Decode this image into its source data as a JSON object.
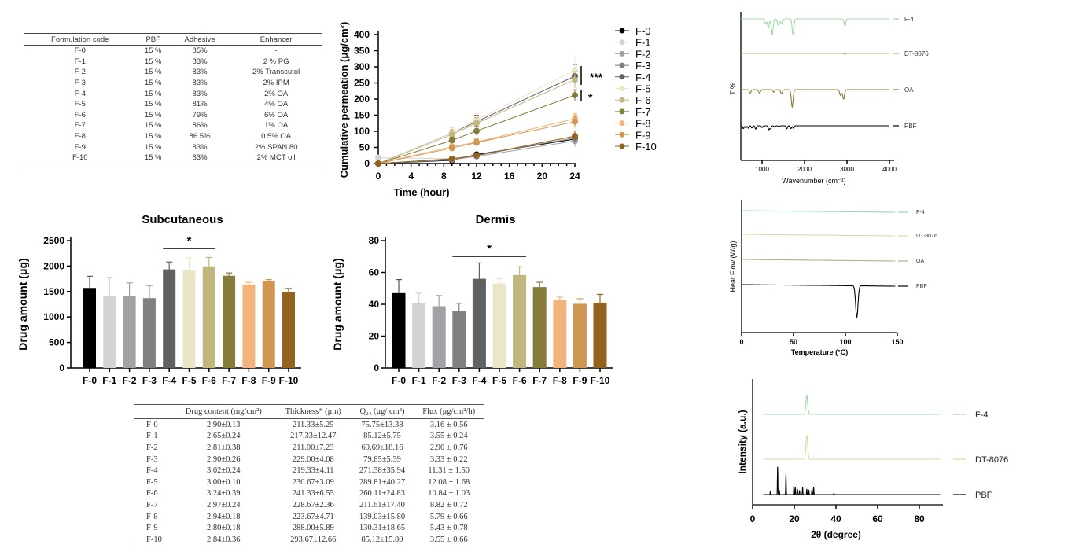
{
  "composition_table": {
    "headers": [
      "Formulation code",
      "PBF",
      "Adhesive",
      "Enhancer"
    ],
    "rows": [
      [
        "F-0",
        "15 %",
        "85%",
        "-"
      ],
      [
        "F-1",
        "15 %",
        "83%",
        "2 % PG"
      ],
      [
        "F-2",
        "15 %",
        "83%",
        "2% Transcutol"
      ],
      [
        "F-3",
        "15 %",
        "83%",
        "2% IPM"
      ],
      [
        "F-4",
        "15 %",
        "83%",
        "2% OA"
      ],
      [
        "F-5",
        "15 %",
        "81%",
        "4% OA"
      ],
      [
        "F-6",
        "15 %",
        "79%",
        "6% OA"
      ],
      [
        "F-7",
        "15 %",
        "86%",
        "1% OA"
      ],
      [
        "F-8",
        "15 %",
        "86.5%",
        "0.5% OA"
      ],
      [
        "F-9",
        "15 %",
        "83%",
        "2% SPAN 80"
      ],
      [
        "F-10",
        "15 %",
        "83%",
        "2% MCT oil"
      ]
    ]
  },
  "properties_table": {
    "headers": [
      "",
      "Drug content (mg/cm²)",
      "Thickness* (μm)",
      "Q₂₄ (μg/ cm²)",
      "Flux (μg/cm²/h)"
    ],
    "rows": [
      [
        "F-0",
        "2.90±0.13",
        "211.33±5.25",
        "75.75±13.38",
        "3.16 ± 0.56"
      ],
      [
        "F-1",
        "2.65±0.24",
        "217.33±12.47",
        "85.12±5.75",
        "3.55 ± 0.24"
      ],
      [
        "F-2",
        "2.81±0.38",
        "211.00±7.23",
        "69.69±18.16",
        "2.90 ± 0.76"
      ],
      [
        "F-3",
        "2.90±0.26",
        "229.00±4.08",
        "79.85±5.39",
        "3.33 ± 0.22"
      ],
      [
        "F-4",
        "3.02±0.24",
        "219.33±4.11",
        "271.38±35.94",
        "11.31 ± 1.50"
      ],
      [
        "F-5",
        "3.00±0.10",
        "230.67±3.09",
        "289.81±40.27",
        "12.08 ± 1.68"
      ],
      [
        "F-6",
        "3.24±0.39",
        "241.33±6.55",
        "260.11±24.83",
        "10.84 ± 1.03"
      ],
      [
        "F-7",
        "2.97±0.24",
        "228.67±2.36",
        "211.61±17.40",
        "8.82 ± 0.72"
      ],
      [
        "F-8",
        "2.94±0.18",
        "223.67±4.71",
        "139.03±15.80",
        "5.79 ± 0.66"
      ],
      [
        "F-9",
        "2.80±0.18",
        "288.00±5.89",
        "130.31±18.65",
        "5.43 ± 0.78"
      ],
      [
        "F-10",
        "2.84±0.36",
        "293.67±12.66",
        "85.12±15.80",
        "3.55 ± 0.66"
      ]
    ]
  },
  "colors": {
    "F-0": "#000000",
    "F-1": "#d4d4d4",
    "F-2": "#a2a2a6",
    "F-3": "#808080",
    "F-4": "#616161",
    "F-5": "#ece6c8",
    "F-6": "#c1b67d",
    "F-7": "#857b3a",
    "F-8": "#f2b47c",
    "F-9": "#cf9752",
    "F-10": "#93621f",
    "ftir_F-4": "#9fd8a8",
    "ftir_DT-8076": "#b8b08a",
    "ftir_OA": "#8a7a3a",
    "ftir_PBF": "#000000",
    "dsc_F-4": "#9fd8b0",
    "dsc_DT-8076": "#d8dca8",
    "dsc_OA": "#b4b08a",
    "dsc_PBF": "#000000",
    "xrd_F-4": "#9fd8a8",
    "xrd_DT-8076": "#d8dca0",
    "xrd_PBF": "#000000"
  },
  "chart_data": [
    {
      "id": "permeation",
      "type": "line",
      "xlabel": "Time (hour)",
      "ylabel": "Cumulative permeation (μg/cm²)",
      "xlim": [
        0,
        24
      ],
      "ylim": [
        0,
        400
      ],
      "xticks": [
        0,
        4,
        8,
        12,
        16,
        20,
        24
      ],
      "yticks": [
        0,
        50,
        100,
        150,
        200,
        250,
        300,
        350,
        400
      ],
      "x": [
        0,
        9,
        12,
        24
      ],
      "legend_position": "right",
      "annotations": [
        "***",
        "*"
      ],
      "series": [
        {
          "name": "F-0",
          "values": [
            0,
            10,
            28,
            76
          ],
          "error": [
            3,
            4,
            6,
            13
          ]
        },
        {
          "name": "F-1",
          "values": [
            18,
            15,
            25,
            85
          ],
          "error": [
            3,
            4,
            6,
            6
          ]
        },
        {
          "name": "F-2",
          "values": [
            0,
            12,
            22,
            70
          ],
          "error": [
            3,
            4,
            6,
            18
          ]
        },
        {
          "name": "F-3",
          "values": [
            0,
            14,
            25,
            80
          ],
          "error": [
            3,
            4,
            6,
            5
          ]
        },
        {
          "name": "F-4",
          "values": [
            0,
            95,
            130,
            271
          ],
          "error": [
            3,
            18,
            20,
            36
          ]
        },
        {
          "name": "F-5",
          "values": [
            0,
            95,
            135,
            290
          ],
          "error": [
            3,
            18,
            20,
            40
          ]
        },
        {
          "name": "F-6",
          "values": [
            0,
            90,
            125,
            260
          ],
          "error": [
            3,
            15,
            18,
            25
          ]
        },
        {
          "name": "F-7",
          "values": [
            0,
            72,
            101,
            212
          ],
          "error": [
            3,
            10,
            14,
            17
          ]
        },
        {
          "name": "F-8",
          "values": [
            0,
            52,
            67,
            139
          ],
          "error": [
            3,
            8,
            10,
            16
          ]
        },
        {
          "name": "F-9",
          "values": [
            0,
            48,
            65,
            130
          ],
          "error": [
            3,
            8,
            10,
            19
          ]
        },
        {
          "name": "F-10",
          "values": [
            0,
            15,
            25,
            85
          ],
          "error": [
            3,
            4,
            6,
            16
          ]
        }
      ]
    },
    {
      "id": "subcutaneous",
      "type": "bar",
      "title": "Subcutaneous",
      "ylabel": "Drug amount (μg)",
      "ylim": [
        0,
        2500
      ],
      "yticks": [
        0,
        500,
        1000,
        1500,
        2000,
        2500
      ],
      "categories": [
        "F-0",
        "F-1",
        "F-2",
        "F-3",
        "F-4",
        "F-5",
        "F-6",
        "F-7",
        "F-8",
        "F-9",
        "F-10"
      ],
      "values": [
        1570,
        1420,
        1420,
        1370,
        1935,
        1920,
        1995,
        1810,
        1640,
        1705,
        1490
      ],
      "error": [
        230,
        360,
        250,
        250,
        145,
        240,
        175,
        55,
        40,
        30,
        70
      ],
      "significance": {
        "from": "F-4",
        "to": "F-6",
        "label": "*"
      }
    },
    {
      "id": "dermis",
      "type": "bar",
      "title": "Dermis",
      "ylabel": "Drug amount (μg)",
      "ylim": [
        0,
        80
      ],
      "yticks": [
        0,
        20,
        40,
        60,
        80
      ],
      "categories": [
        "F-0",
        "F-1",
        "F-2",
        "F-3",
        "F-4",
        "F-5",
        "F-6",
        "F-7",
        "F-8",
        "F-9",
        "F-10"
      ],
      "values": [
        47,
        40.5,
        38.8,
        35.8,
        56,
        53,
        58.3,
        50.8,
        42.5,
        40.3,
        41
      ],
      "error": [
        8.5,
        6.5,
        6.7,
        4.8,
        10,
        3,
        5.3,
        3,
        2,
        3.2,
        5.2
      ],
      "significance": {
        "from": "F-3",
        "to": "F-6",
        "label": "*"
      }
    },
    {
      "id": "ftir",
      "type": "line",
      "xlabel": "Wavenumber (cm⁻¹)",
      "ylabel": "T %",
      "xlim": [
        500,
        4100
      ],
      "xticks": [
        1000,
        2000,
        3000,
        4000
      ],
      "series": [
        {
          "name": "F-4",
          "peaks": [
            [
              1080,
              0.3
            ],
            [
              1150,
              0.5
            ],
            [
              1240,
              0.9
            ],
            [
              1380,
              0.35
            ],
            [
              1450,
              0.3
            ],
            [
              1730,
              0.9
            ],
            [
              2950,
              0.4
            ]
          ]
        },
        {
          "name": "DT-8076",
          "peaks": [
            [
              2950,
              0.05
            ]
          ]
        },
        {
          "name": "OA",
          "peaks": [
            [
              720,
              0.2
            ],
            [
              940,
              0.2
            ],
            [
              1280,
              0.15
            ],
            [
              1460,
              0.25
            ],
            [
              1710,
              1.0
            ],
            [
              2850,
              0.35
            ],
            [
              2920,
              0.55
            ]
          ]
        },
        {
          "name": "PBF",
          "peaks": [
            [
              560,
              0.4
            ],
            [
              620,
              0.3
            ],
            [
              680,
              0.35
            ],
            [
              760,
              0.3
            ],
            [
              850,
              0.45
            ],
            [
              1000,
              0.25
            ],
            [
              1160,
              0.55
            ],
            [
              1200,
              0.4
            ],
            [
              1300,
              0.2
            ],
            [
              1400,
              0.2
            ],
            [
              1580,
              0.45
            ],
            [
              1680,
              0.4
            ],
            [
              1740,
              0.35
            ]
          ]
        }
      ]
    },
    {
      "id": "dsc",
      "type": "line",
      "xlabel": "Temperature (°C)",
      "ylabel": "Heat Flow (W/g)",
      "xlim": [
        0,
        150
      ],
      "xticks": [
        0,
        50,
        100,
        150
      ],
      "series": [
        {
          "name": "F-4",
          "peaks": []
        },
        {
          "name": "DT-8076",
          "peaks": []
        },
        {
          "name": "OA",
          "peaks": []
        },
        {
          "name": "PBF",
          "peaks": [
            [
              111,
              1.0
            ]
          ]
        }
      ]
    },
    {
      "id": "xrd",
      "type": "line",
      "xlabel": "2θ (degree)",
      "ylabel": "Intensity (a.u.)",
      "xlim": [
        0,
        90
      ],
      "xticks": [
        0,
        20,
        40,
        60,
        80
      ],
      "series": [
        {
          "name": "F-4",
          "peaks": [
            [
              26,
              0.75
            ]
          ]
        },
        {
          "name": "DT-8076",
          "peaks": [
            [
              26,
              0.95
            ]
          ]
        },
        {
          "name": "PBF",
          "peaks": [
            [
              8.5,
              0.12
            ],
            [
              12,
              1.0
            ],
            [
              12.8,
              0.15
            ],
            [
              16,
              0.75
            ],
            [
              19.8,
              0.3
            ],
            [
              20.5,
              0.25
            ],
            [
              21.5,
              0.2
            ],
            [
              22.5,
              0.15
            ],
            [
              24,
              0.25
            ],
            [
              26,
              0.2
            ],
            [
              27,
              0.15
            ],
            [
              28.5,
              0.2
            ],
            [
              29.3,
              0.25
            ],
            [
              39,
              0.05
            ]
          ]
        }
      ]
    }
  ]
}
